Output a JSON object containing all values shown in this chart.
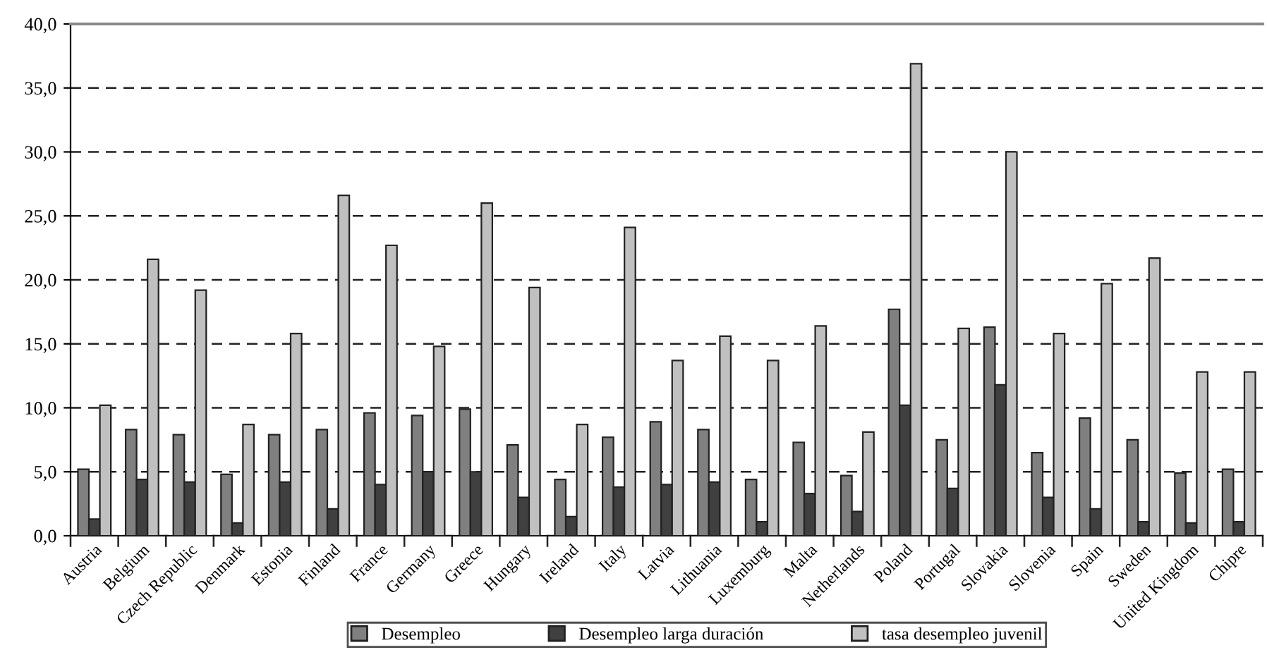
{
  "chart_data": {
    "type": "bar",
    "categories": [
      "Austria",
      "Belgium",
      "Czech Republic",
      "Denmark",
      "Estonia",
      "Finland",
      "France",
      "Germany",
      "Greece",
      "Hungary",
      "Ireland",
      "Italy",
      "Latvia",
      "Lithuania",
      "Luxemburg",
      "Malta",
      "Netherlands",
      "Poland",
      "Portugal",
      "Slovakia",
      "Slovenia",
      "Spain",
      "Sweden",
      "United Kingdom",
      "Chipre"
    ],
    "series": [
      {
        "name": "Desempleo",
        "color": "#808080",
        "values": [
          5.2,
          8.3,
          7.9,
          4.8,
          7.9,
          8.3,
          9.6,
          9.4,
          9.9,
          7.1,
          4.4,
          7.7,
          8.9,
          8.3,
          4.4,
          7.3,
          4.7,
          17.7,
          7.5,
          16.3,
          6.5,
          9.2,
          7.5,
          4.9,
          5.2
        ]
      },
      {
        "name": "Desempleo larga duración",
        "color": "#404040",
        "values": [
          1.3,
          4.4,
          4.2,
          1.0,
          4.2,
          2.1,
          4.0,
          5.0,
          5.0,
          3.0,
          1.5,
          3.8,
          4.0,
          4.2,
          1.1,
          3.3,
          1.9,
          10.2,
          3.7,
          11.8,
          3.0,
          2.1,
          1.1,
          1.0,
          1.1
        ]
      },
      {
        "name": "tasa desempleo juvenil",
        "color": "#c0c0c0",
        "values": [
          10.2,
          21.6,
          19.2,
          8.7,
          15.8,
          26.6,
          22.7,
          14.8,
          26.0,
          19.4,
          8.7,
          24.1,
          13.7,
          15.6,
          13.7,
          16.4,
          8.1,
          36.9,
          16.2,
          30.0,
          15.8,
          19.7,
          21.7,
          12.8,
          12.8
        ]
      }
    ],
    "ylim": [
      0,
      40
    ],
    "yticks": [
      {
        "value": 0,
        "label": "0,0"
      },
      {
        "value": 5,
        "label": "5,0"
      },
      {
        "value": 10,
        "label": "10,0"
      },
      {
        "value": 15,
        "label": "15,0"
      },
      {
        "value": 20,
        "label": "20,0"
      },
      {
        "value": 25,
        "label": "25,0"
      },
      {
        "value": 30,
        "label": "30,0"
      },
      {
        "value": 35,
        "label": "35,0"
      },
      {
        "value": 40,
        "label": "40,0"
      }
    ],
    "grid": "y",
    "legend": "bottom"
  }
}
